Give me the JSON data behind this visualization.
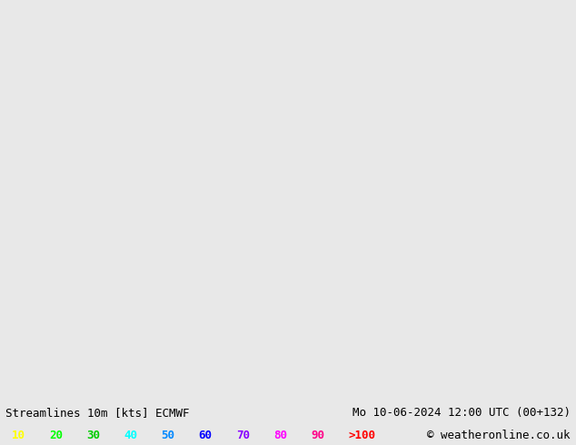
{
  "title_left": "Streamlines 10m [kts] ECMWF",
  "title_right": "Mo 10-06-2024 12:00 UTC (00+132)",
  "copyright": "© weatheronline.co.uk",
  "legend_values": [
    "10",
    "20",
    "30",
    "40",
    "50",
    "60",
    "70",
    "80",
    "90",
    ">100"
  ],
  "legend_colors": [
    "#ffff00",
    "#00ff00",
    "#00cc00",
    "#00ffff",
    "#0088ff",
    "#0000ff",
    "#8800ff",
    "#ff00ff",
    "#ff0088",
    "#ff0000"
  ],
  "bg_color": "#e8e8e8",
  "land_color": "#ccffcc",
  "ocean_color": "#e8e8e8",
  "border_color": "#888888",
  "figsize": [
    6.34,
    4.9
  ],
  "dpi": 100,
  "map_extent": [
    -170,
    -50,
    10,
    85
  ],
  "bottom_bar_color": "#d4d4d4",
  "title_fontsize": 9,
  "legend_fontsize": 9
}
